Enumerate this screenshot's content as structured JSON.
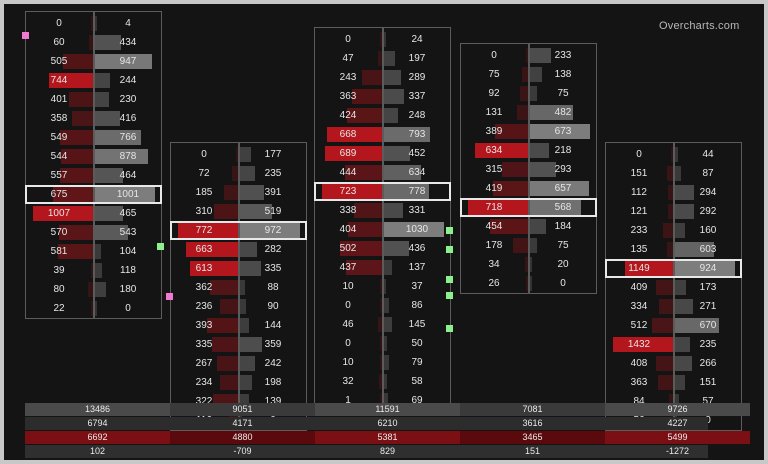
{
  "watermark": "Overcharts.com",
  "colors": {
    "bid_bar": "#b3161c",
    "ask_bar": "#8f8f8f",
    "poc_border": "#e8e8e8",
    "marker_pink": "#f07ad2",
    "marker_green": "#8cf08c"
  },
  "clusters": [
    {
      "rows": [
        {
          "bid": "0",
          "ask": "4"
        },
        {
          "bid": "60",
          "ask": "434"
        },
        {
          "bid": "505",
          "ask": "947"
        },
        {
          "bid": "744",
          "ask": "244"
        },
        {
          "bid": "401",
          "ask": "230"
        },
        {
          "bid": "358",
          "ask": "416"
        },
        {
          "bid": "549",
          "ask": "766"
        },
        {
          "bid": "544",
          "ask": "878"
        },
        {
          "bid": "557",
          "ask": "464"
        },
        {
          "bid": "675",
          "ask": "1001"
        },
        {
          "bid": "1007",
          "ask": "465"
        },
        {
          "bid": "570",
          "ask": "543"
        },
        {
          "bid": "581",
          "ask": "104"
        },
        {
          "bid": "39",
          "ask": "118"
        },
        {
          "bid": "80",
          "ask": "180"
        },
        {
          "bid": "22",
          "ask": "0"
        }
      ]
    },
    {
      "rows": [
        {
          "bid": "0",
          "ask": "177"
        },
        {
          "bid": "72",
          "ask": "235"
        },
        {
          "bid": "185",
          "ask": "391"
        },
        {
          "bid": "310",
          "ask": "519"
        },
        {
          "bid": "772",
          "ask": "972"
        },
        {
          "bid": "663",
          "ask": "282"
        },
        {
          "bid": "613",
          "ask": "335"
        },
        {
          "bid": "362",
          "ask": "88"
        },
        {
          "bid": "236",
          "ask": "90"
        },
        {
          "bid": "393",
          "ask": "144"
        },
        {
          "bid": "335",
          "ask": "359"
        },
        {
          "bid": "267",
          "ask": "242"
        },
        {
          "bid": "234",
          "ask": "198"
        },
        {
          "bid": "322",
          "ask": "139"
        },
        {
          "bid": "116",
          "ask": "0"
        }
      ]
    },
    {
      "rows": [
        {
          "bid": "0",
          "ask": "24"
        },
        {
          "bid": "47",
          "ask": "197"
        },
        {
          "bid": "243",
          "ask": "289"
        },
        {
          "bid": "363",
          "ask": "337"
        },
        {
          "bid": "424",
          "ask": "248"
        },
        {
          "bid": "668",
          "ask": "793"
        },
        {
          "bid": "689",
          "ask": "452"
        },
        {
          "bid": "444",
          "ask": "634"
        },
        {
          "bid": "723",
          "ask": "778"
        },
        {
          "bid": "338",
          "ask": "331"
        },
        {
          "bid": "404",
          "ask": "1030"
        },
        {
          "bid": "502",
          "ask": "436"
        },
        {
          "bid": "437",
          "ask": "137"
        },
        {
          "bid": "10",
          "ask": "37"
        },
        {
          "bid": "0",
          "ask": "86"
        },
        {
          "bid": "46",
          "ask": "145"
        },
        {
          "bid": "0",
          "ask": "50"
        },
        {
          "bid": "10",
          "ask": "79"
        },
        {
          "bid": "32",
          "ask": "58"
        },
        {
          "bid": "1",
          "ask": "69"
        }
      ]
    },
    {
      "rows": [
        {
          "bid": "0",
          "ask": "233"
        },
        {
          "bid": "75",
          "ask": "138"
        },
        {
          "bid": "92",
          "ask": "75"
        },
        {
          "bid": "131",
          "ask": "482"
        },
        {
          "bid": "389",
          "ask": "673"
        },
        {
          "bid": "634",
          "ask": "218"
        },
        {
          "bid": "315",
          "ask": "293"
        },
        {
          "bid": "419",
          "ask": "657"
        },
        {
          "bid": "718",
          "ask": "568"
        },
        {
          "bid": "454",
          "ask": "184"
        },
        {
          "bid": "178",
          "ask": "75"
        },
        {
          "bid": "34",
          "ask": "20"
        },
        {
          "bid": "26",
          "ask": "0"
        }
      ]
    },
    {
      "rows": [
        {
          "bid": "0",
          "ask": "44"
        },
        {
          "bid": "151",
          "ask": "87"
        },
        {
          "bid": "112",
          "ask": "294"
        },
        {
          "bid": "121",
          "ask": "292"
        },
        {
          "bid": "233",
          "ask": "160"
        },
        {
          "bid": "135",
          "ask": "603"
        },
        {
          "bid": "1149",
          "ask": "924"
        },
        {
          "bid": "409",
          "ask": "173"
        },
        {
          "bid": "334",
          "ask": "271"
        },
        {
          "bid": "512",
          "ask": "670"
        },
        {
          "bid": "1432",
          "ask": "235"
        },
        {
          "bid": "408",
          "ask": "266"
        },
        {
          "bid": "363",
          "ask": "151"
        },
        {
          "bid": "84",
          "ask": "57"
        },
        {
          "bid": "56",
          "ask": "0"
        }
      ]
    }
  ],
  "summary": [
    [
      "13486",
      "9051",
      "11591",
      "7081",
      "9726"
    ],
    [
      "6794",
      "4171",
      "6210",
      "3616",
      "4227"
    ],
    [
      "6692",
      "4880",
      "5381",
      "3465",
      "5499"
    ],
    [
      "102",
      "-709",
      "829",
      "151",
      "-1272"
    ]
  ]
}
